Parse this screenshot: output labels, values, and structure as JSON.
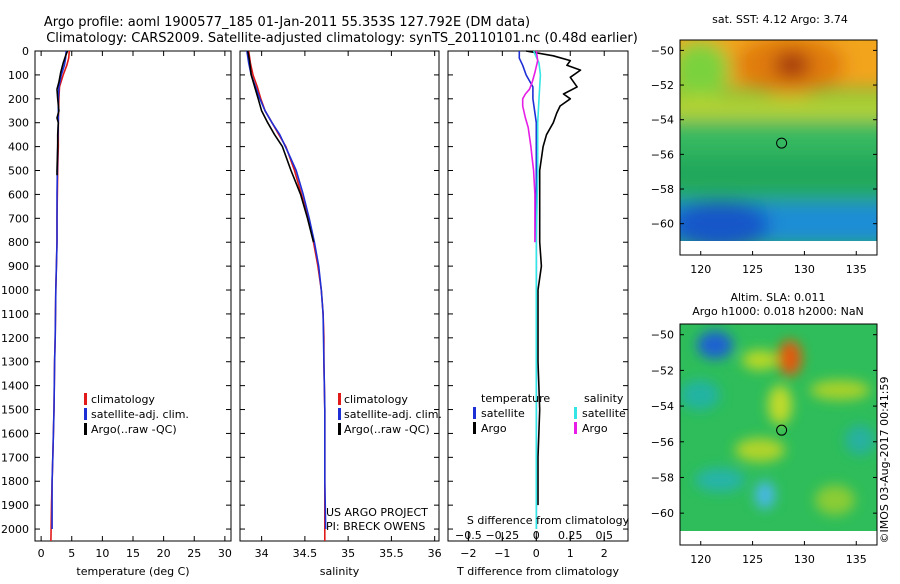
{
  "header": {
    "line1": "Argo profile: aoml 1900577_185 01-Jan-2011 55.353S 127.792E (DM data)",
    "line2": "Climatology: CARS2009. Satellite-adjusted climatology: synTS_20110101.nc (0.48d earlier)"
  },
  "footer_note": "©IMOS 03-Aug-2017 00:41:59",
  "colors": {
    "climatology": "#e11919",
    "satellite": "#1f2fd6",
    "argo": "#000000",
    "magenta": "#e61ee6",
    "cyan": "#33e5e5"
  },
  "chart_data": [
    {
      "id": "temperature",
      "type": "line",
      "xlabel": "temperature (deg C)",
      "xlim": [
        -1,
        31
      ],
      "ylim": [
        0,
        2050
      ],
      "y_reversed": true,
      "xticks": [
        0,
        5,
        10,
        15,
        20,
        25,
        30
      ],
      "yticks": [
        0,
        100,
        200,
        300,
        400,
        500,
        600,
        700,
        800,
        900,
        1000,
        1100,
        1200,
        1300,
        1400,
        1500,
        1600,
        1700,
        1800,
        1900,
        2000
      ],
      "legend": [
        {
          "label": "climatology",
          "color": "#e11919"
        },
        {
          "label": "satellite-adj. clim.",
          "color": "#1f2fd6"
        },
        {
          "label": "Argo(..raw -QC)",
          "color": "#000000"
        }
      ],
      "series": [
        {
          "name": "climatology",
          "color": "#e11919",
          "x": [
            4.6,
            4.5,
            4.2,
            3.6,
            3.0,
            2.9,
            2.8,
            2.8,
            2.7,
            2.6,
            2.6,
            2.5,
            2.4,
            2.3,
            2.2,
            2.1,
            2.0,
            1.9,
            1.8,
            1.7,
            1.6
          ],
          "y": [
            0,
            30,
            60,
            100,
            150,
            200,
            300,
            400,
            500,
            700,
            800,
            900,
            1000,
            1200,
            1300,
            1500,
            1600,
            1700,
            1800,
            1900,
            2050
          ]
        },
        {
          "name": "satellite-adj. clim.",
          "color": "#1f2fd6",
          "x": [
            4.1,
            4.0,
            3.8,
            3.3,
            2.9,
            2.8,
            2.8,
            2.7,
            2.6,
            2.6,
            2.5,
            2.4,
            2.3,
            2.2,
            2.1,
            2.0,
            1.9,
            1.8,
            1.8
          ],
          "y": [
            0,
            30,
            60,
            100,
            150,
            200,
            300,
            400,
            600,
            800,
            900,
            1000,
            1200,
            1300,
            1500,
            1600,
            1700,
            1800,
            2000
          ]
        },
        {
          "name": "Argo(..raw -QC)",
          "color": "#000000",
          "x": [
            4.3,
            4.0,
            3.6,
            3.2,
            2.9,
            2.6,
            2.7,
            2.9,
            2.6,
            2.8,
            2.7,
            2.7,
            2.6,
            2.6
          ],
          "y": [
            0,
            20,
            50,
            90,
            130,
            160,
            200,
            250,
            280,
            300,
            350,
            400,
            500,
            520
          ]
        }
      ]
    },
    {
      "id": "salinity",
      "type": "line",
      "xlabel": "salinity",
      "xlim": [
        33.75,
        36.05
      ],
      "ylim": [
        0,
        2050
      ],
      "y_reversed": true,
      "xticks": [
        34,
        34.5,
        35,
        35.5,
        36
      ],
      "legend": [
        {
          "label": "climatology",
          "color": "#e11919"
        },
        {
          "label": "satellite-adj. clim.",
          "color": "#1f2fd6"
        },
        {
          "label": "Argo(..raw -QC)",
          "color": "#000000"
        }
      ],
      "annotation": [
        "US ARGO PROJECT",
        "PI: BRECK OWENS"
      ],
      "series": [
        {
          "name": "climatology",
          "color": "#e11919",
          "x": [
            33.85,
            33.87,
            33.9,
            33.95,
            33.99,
            34.04,
            34.12,
            34.2,
            34.28,
            34.38,
            34.46,
            34.54,
            34.6,
            34.65,
            34.69,
            34.71,
            34.72,
            34.72,
            34.73,
            34.73,
            34.73
          ],
          "y": [
            0,
            50,
            100,
            150,
            200,
            250,
            300,
            350,
            400,
            500,
            600,
            700,
            800,
            900,
            1000,
            1100,
            1200,
            1300,
            1500,
            1800,
            2050
          ]
        },
        {
          "name": "satellite-adj. clim.",
          "color": "#1f2fd6",
          "x": [
            33.83,
            33.85,
            33.88,
            33.93,
            33.98,
            34.04,
            34.12,
            34.21,
            34.3,
            34.4,
            34.48,
            34.55,
            34.61,
            34.66,
            34.69,
            34.71,
            34.72,
            34.73,
            34.73,
            34.74
          ],
          "y": [
            0,
            50,
            100,
            150,
            200,
            250,
            300,
            350,
            420,
            500,
            600,
            700,
            800,
            900,
            1000,
            1100,
            1300,
            1500,
            1800,
            2000
          ]
        },
        {
          "name": "Argo(..raw -QC)",
          "color": "#000000",
          "x": [
            33.84,
            33.86,
            33.88,
            33.92,
            33.96,
            34.0,
            34.07,
            34.15,
            34.24,
            34.34,
            34.45,
            34.53,
            34.6
          ],
          "y": [
            0,
            40,
            100,
            150,
            200,
            250,
            300,
            350,
            400,
            500,
            600,
            700,
            800
          ]
        }
      ]
    },
    {
      "id": "difference",
      "type": "line",
      "xlabel": "T difference from climatology",
      "xlabel2": "S difference from climatology",
      "xlim": [
        -2.6,
        2.7
      ],
      "ylim": [
        0,
        2050
      ],
      "y_reversed": true,
      "xticks": [
        -2,
        -1,
        0,
        1,
        2
      ],
      "s_ticks": [
        {
          "value": -0.5,
          "label": "−0.5"
        },
        {
          "value": -0.25,
          "label": "−0.25"
        },
        {
          "value": 0,
          "label": "0"
        },
        {
          "value": 0.25,
          "label": "0.25"
        },
        {
          "value": 0.5,
          "label": "0.5"
        }
      ],
      "legend_temp_title": "temperature",
      "legend_sal_title": "salinity",
      "legend_temp": [
        {
          "label": "satellite",
          "color": "#1f2fd6"
        },
        {
          "label": "Argo",
          "color": "#000000"
        }
      ],
      "legend_sal": [
        {
          "label": "satellite",
          "color": "#33e5e5"
        },
        {
          "label": "Argo",
          "color": "#e61ee6"
        }
      ],
      "series": [
        {
          "name": "T satellite",
          "color": "#1f2fd6",
          "x": [
            -0.5,
            -0.5,
            -0.4,
            -0.3,
            -0.1,
            -0.1,
            0,
            0,
            0,
            0,
            0,
            0
          ],
          "y": [
            0,
            30,
            60,
            100,
            150,
            200,
            300,
            500,
            800,
            1200,
            1600,
            2000
          ]
        },
        {
          "name": "T Argo",
          "color": "#000000",
          "x": [
            -0.3,
            0.5,
            1.0,
            0.9,
            1.3,
            1.0,
            1.2,
            0.8,
            1.0,
            0.7,
            0.6,
            0.5,
            0.3,
            0.2,
            0.1,
            0.1,
            0.1,
            0.15,
            0.05,
            0.05,
            0.1,
            0.05,
            0.05
          ],
          "y": [
            0,
            20,
            40,
            60,
            80,
            110,
            150,
            180,
            200,
            230,
            260,
            300,
            350,
            400,
            500,
            600,
            800,
            900,
            1000,
            1300,
            1500,
            1700,
            1900
          ]
        },
        {
          "name": "S satellite",
          "color": "#33e5e5",
          "x": [
            -0.02,
            0.02,
            0.03,
            0.02,
            0.01,
            0.01,
            0,
            0,
            0
          ],
          "y": [
            0,
            50,
            100,
            200,
            300,
            500,
            800,
            1200,
            2000
          ]
        },
        {
          "name": "S Argo",
          "color": "#e61ee6",
          "x": [
            0.0,
            0.01,
            -0.01,
            -0.03,
            -0.05,
            -0.08,
            -0.1,
            -0.1,
            -0.08,
            -0.06,
            -0.04,
            -0.03,
            -0.02,
            -0.01,
            -0.01,
            -0.01
          ],
          "y": [
            0,
            40,
            90,
            130,
            160,
            180,
            200,
            230,
            280,
            320,
            400,
            450,
            500,
            600,
            700,
            800
          ]
        }
      ]
    },
    {
      "id": "sst-map",
      "type": "heatmap",
      "title": "sat. SST: 4.12 Argo: 3.74",
      "xlim": [
        118,
        137
      ],
      "ylim": [
        -61,
        -49.4
      ],
      "xticks": [
        120,
        125,
        130,
        135
      ],
      "yticks": [
        -50,
        -52,
        -54,
        -56,
        -58,
        -60
      ],
      "marker": {
        "x": 127.8,
        "y": -55.35
      }
    },
    {
      "id": "sla-map",
      "type": "heatmap",
      "title": "Altim. SLA: 0.011",
      "subtitle": "Argo h1000: 0.018 h2000: NaN",
      "xlim": [
        118,
        137
      ],
      "ylim": [
        -61,
        -49.4
      ],
      "xticks": [
        120,
        125,
        130,
        135
      ],
      "yticks": [
        -50,
        -52,
        -54,
        -56,
        -58,
        -60
      ],
      "marker": {
        "x": 127.8,
        "y": -55.35
      }
    }
  ]
}
